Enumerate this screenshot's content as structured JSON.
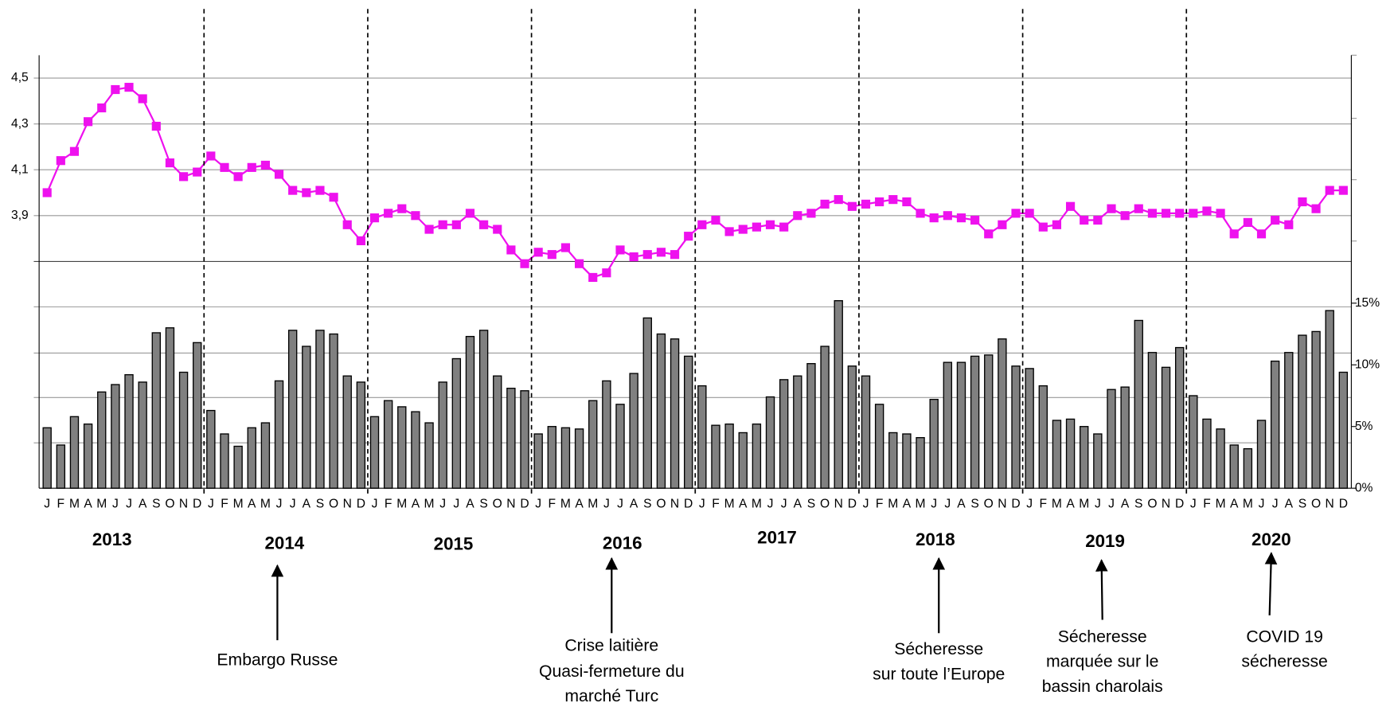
{
  "chart_data": {
    "type": "bar_line",
    "categories": [
      "J",
      "F",
      "M",
      "A",
      "M",
      "J",
      "J",
      "A",
      "S",
      "O",
      "N",
      "D",
      "J",
      "F",
      "M",
      "A",
      "M",
      "J",
      "J",
      "A",
      "S",
      "O",
      "N",
      "D",
      "J",
      "F",
      "M",
      "A",
      "M",
      "J",
      "J",
      "A",
      "S",
      "O",
      "N",
      "D",
      "J",
      "F",
      "M",
      "A",
      "M",
      "J",
      "J",
      "A",
      "S",
      "O",
      "N",
      "D",
      "J",
      "F",
      "M",
      "A",
      "M",
      "J",
      "J",
      "A",
      "S",
      "O",
      "N",
      "D",
      "J",
      "F",
      "M",
      "A",
      "M",
      "J",
      "J",
      "A",
      "S",
      "O",
      "N",
      "D",
      "J",
      "F",
      "M",
      "A",
      "M",
      "J",
      "J",
      "A",
      "S",
      "O",
      "N",
      "D",
      "J",
      "F",
      "M",
      "A",
      "M",
      "J",
      "J",
      "A",
      "S",
      "O",
      "N",
      "D"
    ],
    "years": [
      "2013",
      "2014",
      "2015",
      "2016",
      "2017",
      "2018",
      "2019",
      "2020"
    ],
    "series": [
      {
        "type": "line",
        "axis": "y",
        "color": "#ee11ee",
        "values": [
          4.0,
          4.14,
          4.18,
          4.31,
          4.37,
          4.45,
          4.46,
          4.41,
          4.29,
          4.13,
          4.07,
          4.09,
          4.16,
          4.11,
          4.07,
          4.11,
          4.12,
          4.08,
          4.01,
          4.0,
          4.01,
          3.98,
          3.86,
          3.79,
          3.89,
          3.91,
          3.93,
          3.9,
          3.84,
          3.86,
          3.86,
          3.91,
          3.86,
          3.84,
          3.75,
          3.69,
          3.74,
          3.73,
          3.76,
          3.69,
          3.63,
          3.65,
          3.75,
          3.72,
          3.73,
          3.74,
          3.73,
          3.81,
          3.86,
          3.88,
          3.83,
          3.84,
          3.85,
          3.86,
          3.85,
          3.9,
          3.91,
          3.95,
          3.97,
          3.94,
          3.95,
          3.96,
          3.97,
          3.96,
          3.91,
          3.89,
          3.9,
          3.89,
          3.88,
          3.82,
          3.86,
          3.91,
          3.91,
          3.85,
          3.86,
          3.94,
          3.88,
          3.88,
          3.93,
          3.9,
          3.93,
          3.91,
          3.91,
          3.91,
          3.91,
          3.92,
          3.91,
          3.82,
          3.87,
          3.82,
          3.88,
          3.86,
          3.96,
          3.93,
          4.01,
          4.01
        ]
      },
      {
        "type": "bar",
        "axis": "y2",
        "color": "#808080",
        "values": [
          4.9,
          3.5,
          5.8,
          5.2,
          7.8,
          8.4,
          9.2,
          8.6,
          12.6,
          13.0,
          9.4,
          11.8,
          6.3,
          4.4,
          3.4,
          4.9,
          5.3,
          8.7,
          12.8,
          11.5,
          12.8,
          12.5,
          9.1,
          8.6,
          5.8,
          7.1,
          6.6,
          6.2,
          5.3,
          8.6,
          10.5,
          12.3,
          12.8,
          9.1,
          8.1,
          7.9,
          4.4,
          5.0,
          4.9,
          4.8,
          7.1,
          8.7,
          6.8,
          9.3,
          13.8,
          12.5,
          12.1,
          10.7,
          8.3,
          5.1,
          5.2,
          4.5,
          5.2,
          7.4,
          8.8,
          9.1,
          10.1,
          11.5,
          15.2,
          9.9,
          9.1,
          6.8,
          4.5,
          4.4,
          4.1,
          7.2,
          10.2,
          10.2,
          10.7,
          10.8,
          12.1,
          9.9,
          9.7,
          8.3,
          5.5,
          5.6,
          5.0,
          4.4,
          8.0,
          8.2,
          13.6,
          11.0,
          9.8,
          11.4,
          7.5,
          5.6,
          4.8,
          3.5,
          3.2,
          5.5,
          10.3,
          11.0,
          12.4,
          12.7,
          14.4,
          9.4
        ]
      }
    ],
    "ylim": [
      2.71,
      4.6
    ],
    "yticks": [
      {
        "value": 4.5,
        "label": "4,5"
      },
      {
        "value": 4.3,
        "label": "4,3"
      },
      {
        "value": 4.1,
        "label": "4,1"
      },
      {
        "value": 3.9,
        "label": "3,9"
      }
    ],
    "y2lim": [
      0,
      35.1
    ],
    "y2ticks": [
      {
        "value": 0,
        "label": "0%"
      },
      {
        "value": 5,
        "label": "5%"
      },
      {
        "value": 10,
        "label": "10%"
      },
      {
        "value": 15,
        "label": "15%"
      }
    ],
    "grid": true,
    "annotations": [
      {
        "lines": [
          "Embargo Russe"
        ]
      },
      {
        "lines": [
          "Crise laitière",
          "Quasi-fermeture du",
          "marché Turc"
        ]
      },
      {
        "lines": [
          "Sécheresse",
          "sur toute l’Europe"
        ]
      },
      {
        "lines": [
          "Sécheresse",
          "marquée sur le",
          "bassin charolais"
        ]
      },
      {
        "lines": [
          "COVID 19",
          "sécheresse"
        ]
      }
    ]
  }
}
